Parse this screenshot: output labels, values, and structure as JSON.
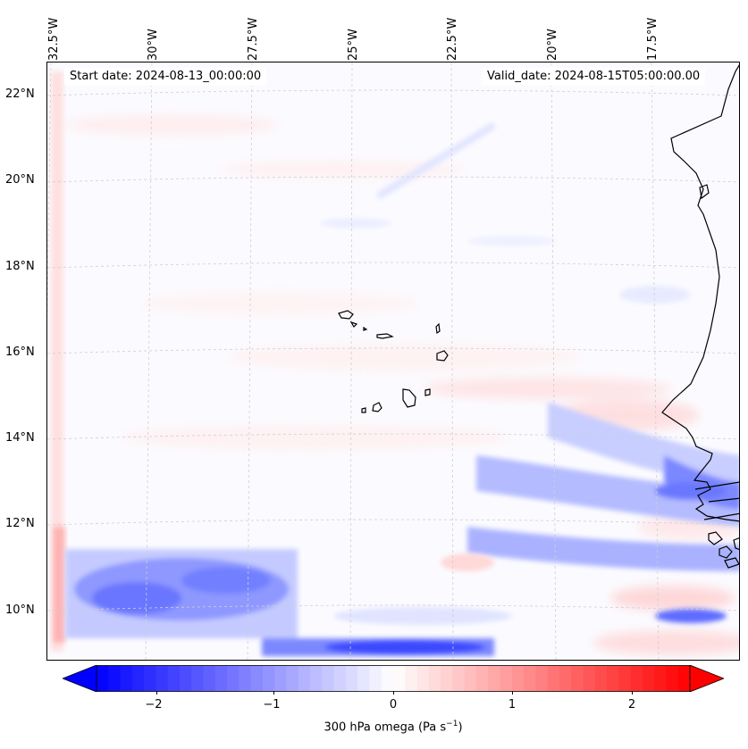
{
  "map": {
    "lon_labels": [
      "32.5°W",
      "30°W",
      "27.5°W",
      "25°W",
      "22.5°W",
      "20°W",
      "17.5°W"
    ],
    "lat_labels": [
      "22°N",
      "20°N",
      "18°N",
      "16°N",
      "14°N",
      "12°N",
      "10°N"
    ],
    "start_date": "Start date: 2024-08-13_00:00:00",
    "valid_date": "Valid_date: 2024-08-15T05:00:00.00",
    "field": "300 hPa omega",
    "gridlines": true,
    "coastline_color": "#000000"
  },
  "colorbar": {
    "label": "300 hPa omega (Pa s",
    "label_exp": "−1",
    "label_close": ")",
    "ticks": [
      "−2",
      "−1",
      "0",
      "1",
      "2"
    ],
    "tick_values": [
      -2,
      -1,
      0,
      1,
      2
    ],
    "range": [
      -2.75,
      2.75
    ],
    "extend": "both",
    "cmap": "bwr",
    "color_min": "#0000ff",
    "color_mid": "#ffffff",
    "color_max": "#ff0000"
  }
}
